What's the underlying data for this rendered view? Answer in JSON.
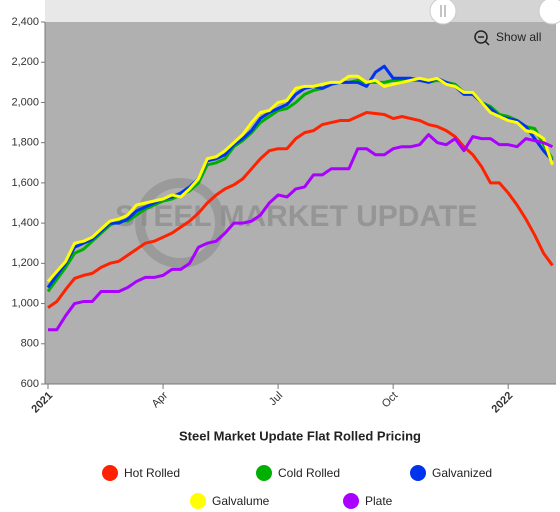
{
  "chart_data": {
    "type": "line",
    "title": "Steel Market Update Flat Rolled Pricing",
    "watermark": "STEEL MARKET UPDATE",
    "categories": [
      "2021",
      null,
      null,
      null,
      null,
      null,
      null,
      null,
      null,
      null,
      null,
      null,
      null,
      "Apr",
      null,
      null,
      null,
      null,
      null,
      null,
      null,
      null,
      null,
      null,
      null,
      null,
      "Jul",
      null,
      null,
      null,
      null,
      null,
      null,
      null,
      null,
      null,
      null,
      null,
      null,
      "Oct",
      null,
      null,
      null,
      null,
      null,
      null,
      null,
      null,
      null,
      null,
      null,
      null,
      "2022",
      null,
      null,
      null,
      null,
      null
    ],
    "series": [
      {
        "name": "Hot Rolled",
        "color": "#ff2200",
        "values": [
          980,
          1010,
          1070,
          1125,
          1140,
          1150,
          1180,
          1200,
          1210,
          1240,
          1270,
          1300,
          1310,
          1330,
          1350,
          1380,
          1410,
          1450,
          1500,
          1540,
          1570,
          1590,
          1620,
          1670,
          1720,
          1760,
          1770,
          1770,
          1820,
          1850,
          1860,
          1890,
          1900,
          1910,
          1910,
          1930,
          1950,
          1945,
          1940,
          1920,
          1930,
          1920,
          1910,
          1890,
          1880,
          1860,
          1830,
          1780,
          1740,
          1680,
          1600,
          1600,
          1550,
          1490,
          1420,
          1340,
          1250,
          1190
        ]
      },
      {
        "name": "Cold Rolled",
        "color": "#00b000",
        "values": [
          1060,
          1120,
          1180,
          1250,
          1270,
          1310,
          1350,
          1390,
          1410,
          1410,
          1440,
          1470,
          1490,
          1510,
          1520,
          1540,
          1560,
          1600,
          1690,
          1700,
          1720,
          1780,
          1810,
          1850,
          1900,
          1930,
          1960,
          1970,
          2000,
          2040,
          2060,
          2070,
          2090,
          2100,
          2100,
          2110,
          2100,
          2100,
          2100,
          2110,
          2110,
          2110,
          2110,
          2100,
          2110,
          2100,
          2090,
          2050,
          2050,
          2000,
          1980,
          1940,
          1930,
          1910,
          1880,
          1870,
          1790,
          1720
        ]
      },
      {
        "name": "Galvanized",
        "color": "#0033ee",
        "values": [
          1080,
          1140,
          1200,
          1280,
          1300,
          1320,
          1360,
          1400,
          1400,
          1420,
          1460,
          1480,
          1500,
          1520,
          1530,
          1550,
          1580,
          1620,
          1710,
          1720,
          1740,
          1790,
          1820,
          1860,
          1920,
          1950,
          1970,
          1990,
          2040,
          2070,
          2080,
          2070,
          2090,
          2100,
          2100,
          2100,
          2080,
          2150,
          2180,
          2120,
          2120,
          2120,
          2110,
          2100,
          2120,
          2100,
          2080,
          2040,
          2040,
          2000,
          1970,
          1930,
          1920,
          1910,
          1880,
          1820,
          1760,
          1710
        ]
      },
      {
        "name": "Galvalume",
        "color": "#ffff00",
        "values": [
          1110,
          1160,
          1210,
          1300,
          1310,
          1330,
          1370,
          1410,
          1420,
          1440,
          1490,
          1500,
          1510,
          1520,
          1540,
          1530,
          1570,
          1620,
          1720,
          1730,
          1760,
          1800,
          1840,
          1900,
          1950,
          1960,
          2000,
          2010,
          2070,
          2080,
          2080,
          2090,
          2100,
          2100,
          2130,
          2130,
          2100,
          2110,
          2080,
          2090,
          2100,
          2110,
          2120,
          2110,
          2120,
          2090,
          2080,
          2050,
          2050,
          2000,
          1950,
          1930,
          1910,
          1900,
          1860,
          1850,
          1820,
          1690
        ]
      },
      {
        "name": "Plate",
        "color": "#aa00ff",
        "values": [
          870,
          870,
          940,
          1000,
          1010,
          1010,
          1060,
          1060,
          1060,
          1080,
          1110,
          1130,
          1130,
          1140,
          1170,
          1170,
          1200,
          1280,
          1300,
          1310,
          1350,
          1400,
          1400,
          1410,
          1440,
          1500,
          1540,
          1530,
          1570,
          1580,
          1640,
          1640,
          1670,
          1670,
          1670,
          1770,
          1770,
          1740,
          1740,
          1770,
          1780,
          1780,
          1790,
          1840,
          1800,
          1790,
          1820,
          1760,
          1830,
          1820,
          1820,
          1790,
          1790,
          1780,
          1820,
          1810,
          1800,
          1780
        ]
      }
    ],
    "ylim": [
      600,
      2400
    ],
    "yticks": [
      600,
      800,
      {
        "value": 1000,
        "label": "1,000"
      },
      {
        "value": 1200,
        "label": "1,200"
      },
      {
        "value": 1400,
        "label": "1,400"
      },
      {
        "value": 1600,
        "label": "1,600"
      },
      {
        "value": 1800,
        "label": "1,800"
      },
      {
        "value": 2000,
        "label": "2,000"
      },
      {
        "value": 2200,
        "label": "2,200"
      },
      {
        "value": 2400,
        "label": "2,400"
      }
    ],
    "grid": false
  },
  "controls": {
    "show_all": "Show all"
  }
}
